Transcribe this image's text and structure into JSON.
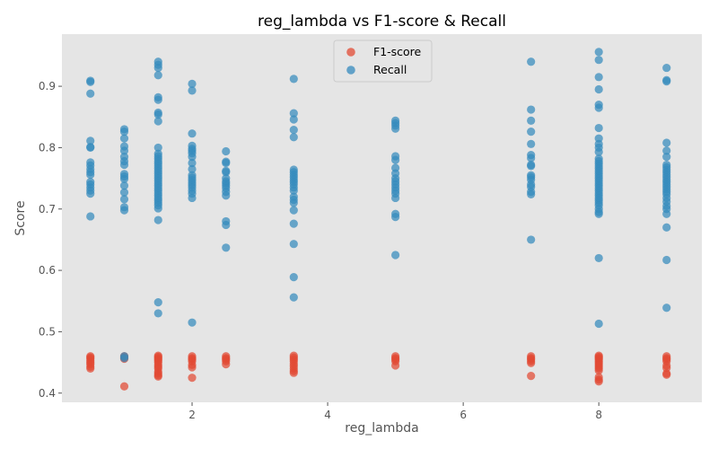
{
  "chart_data": {
    "type": "scatter",
    "title": "reg_lambda vs F1-score & Recall",
    "xlabel": "reg_lambda",
    "ylabel": "Score",
    "xlim": [
      0.08,
      9.52
    ],
    "ylim": [
      0.385,
      0.985
    ],
    "xticks": [
      2,
      4,
      6,
      8
    ],
    "yticks": [
      0.4,
      0.5,
      0.6,
      0.7,
      0.8,
      0.9
    ],
    "xtick_labels": [
      "2",
      "4",
      "6",
      "8"
    ],
    "ytick_labels": [
      "0.4",
      "0.5",
      "0.6",
      "0.7",
      "0.8",
      "0.9"
    ],
    "grid": false,
    "background": "#e5e5e5",
    "legend_position": "top-center",
    "legend": [
      {
        "label": "F1-score",
        "color": "#e24a33"
      },
      {
        "label": "Recall",
        "color": "#348abd"
      }
    ],
    "series": [
      {
        "name": "F1-score",
        "color": "#e24a33",
        "points": [
          [
            0.5,
            0.46
          ],
          [
            0.5,
            0.458
          ],
          [
            0.5,
            0.456
          ],
          [
            0.5,
            0.453
          ],
          [
            0.5,
            0.45
          ],
          [
            0.5,
            0.447
          ],
          [
            0.5,
            0.443
          ],
          [
            0.5,
            0.44
          ],
          [
            1.0,
            0.46
          ],
          [
            1.0,
            0.458
          ],
          [
            1.0,
            0.456
          ],
          [
            1.0,
            0.411
          ],
          [
            1.5,
            0.461
          ],
          [
            1.5,
            0.459
          ],
          [
            1.5,
            0.457
          ],
          [
            1.5,
            0.455
          ],
          [
            1.5,
            0.453
          ],
          [
            1.5,
            0.45
          ],
          [
            1.5,
            0.446
          ],
          [
            1.5,
            0.443
          ],
          [
            1.5,
            0.44
          ],
          [
            1.5,
            0.435
          ],
          [
            1.5,
            0.432
          ],
          [
            1.5,
            0.429
          ],
          [
            1.5,
            0.427
          ],
          [
            2.0,
            0.46
          ],
          [
            2.0,
            0.457
          ],
          [
            2.0,
            0.455
          ],
          [
            2.0,
            0.452
          ],
          [
            2.0,
            0.446
          ],
          [
            2.0,
            0.442
          ],
          [
            2.0,
            0.425
          ],
          [
            2.5,
            0.46
          ],
          [
            2.5,
            0.457
          ],
          [
            2.5,
            0.455
          ],
          [
            2.5,
            0.452
          ],
          [
            2.5,
            0.447
          ],
          [
            3.5,
            0.461
          ],
          [
            3.5,
            0.458
          ],
          [
            3.5,
            0.455
          ],
          [
            3.5,
            0.452
          ],
          [
            3.5,
            0.448
          ],
          [
            3.5,
            0.444
          ],
          [
            3.5,
            0.44
          ],
          [
            3.5,
            0.436
          ],
          [
            3.5,
            0.433
          ],
          [
            5.0,
            0.46
          ],
          [
            5.0,
            0.457
          ],
          [
            5.0,
            0.455
          ],
          [
            5.0,
            0.452
          ],
          [
            5.0,
            0.445
          ],
          [
            7.0,
            0.46
          ],
          [
            7.0,
            0.457
          ],
          [
            7.0,
            0.455
          ],
          [
            7.0,
            0.452
          ],
          [
            7.0,
            0.449
          ],
          [
            7.0,
            0.428
          ],
          [
            8.0,
            0.461
          ],
          [
            8.0,
            0.459
          ],
          [
            8.0,
            0.457
          ],
          [
            8.0,
            0.455
          ],
          [
            8.0,
            0.452
          ],
          [
            8.0,
            0.449
          ],
          [
            8.0,
            0.446
          ],
          [
            8.0,
            0.443
          ],
          [
            8.0,
            0.44
          ],
          [
            8.0,
            0.437
          ],
          [
            8.0,
            0.426
          ],
          [
            8.0,
            0.422
          ],
          [
            8.0,
            0.419
          ],
          [
            9.0,
            0.46
          ],
          [
            9.0,
            0.457
          ],
          [
            9.0,
            0.455
          ],
          [
            9.0,
            0.452
          ],
          [
            9.0,
            0.445
          ],
          [
            9.0,
            0.441
          ],
          [
            9.0,
            0.432
          ],
          [
            9.0,
            0.43
          ]
        ]
      },
      {
        "name": "Recall",
        "color": "#348abd",
        "points": [
          [
            0.5,
            0.909
          ],
          [
            0.5,
            0.907
          ],
          [
            0.5,
            0.888
          ],
          [
            0.5,
            0.811
          ],
          [
            0.5,
            0.801
          ],
          [
            0.5,
            0.8
          ],
          [
            0.5,
            0.776
          ],
          [
            0.5,
            0.771
          ],
          [
            0.5,
            0.765
          ],
          [
            0.5,
            0.76
          ],
          [
            0.5,
            0.756
          ],
          [
            0.5,
            0.744
          ],
          [
            0.5,
            0.74
          ],
          [
            0.5,
            0.735
          ],
          [
            0.5,
            0.73
          ],
          [
            0.5,
            0.725
          ],
          [
            0.5,
            0.688
          ],
          [
            1.0,
            0.83
          ],
          [
            1.0,
            0.826
          ],
          [
            1.0,
            0.815
          ],
          [
            1.0,
            0.802
          ],
          [
            1.0,
            0.795
          ],
          [
            1.0,
            0.785
          ],
          [
            1.0,
            0.778
          ],
          [
            1.0,
            0.772
          ],
          [
            1.0,
            0.757
          ],
          [
            1.0,
            0.753
          ],
          [
            1.0,
            0.749
          ],
          [
            1.0,
            0.738
          ],
          [
            1.0,
            0.727
          ],
          [
            1.0,
            0.716
          ],
          [
            1.0,
            0.703
          ],
          [
            1.0,
            0.698
          ],
          [
            1.0,
            0.46
          ],
          [
            1.0,
            0.457
          ],
          [
            1.5,
            0.94
          ],
          [
            1.5,
            0.935
          ],
          [
            1.5,
            0.93
          ],
          [
            1.5,
            0.918
          ],
          [
            1.5,
            0.882
          ],
          [
            1.5,
            0.878
          ],
          [
            1.5,
            0.857
          ],
          [
            1.5,
            0.854
          ],
          [
            1.5,
            0.843
          ],
          [
            1.5,
            0.8
          ],
          [
            1.5,
            0.79
          ],
          [
            1.5,
            0.786
          ],
          [
            1.5,
            0.782
          ],
          [
            1.5,
            0.778
          ],
          [
            1.5,
            0.774
          ],
          [
            1.5,
            0.77
          ],
          [
            1.5,
            0.766
          ],
          [
            1.5,
            0.762
          ],
          [
            1.5,
            0.758
          ],
          [
            1.5,
            0.754
          ],
          [
            1.5,
            0.75
          ],
          [
            1.5,
            0.746
          ],
          [
            1.5,
            0.742
          ],
          [
            1.5,
            0.738
          ],
          [
            1.5,
            0.734
          ],
          [
            1.5,
            0.73
          ],
          [
            1.5,
            0.726
          ],
          [
            1.5,
            0.722
          ],
          [
            1.5,
            0.718
          ],
          [
            1.5,
            0.714
          ],
          [
            1.5,
            0.71
          ],
          [
            1.5,
            0.706
          ],
          [
            1.5,
            0.701
          ],
          [
            1.5,
            0.682
          ],
          [
            1.5,
            0.548
          ],
          [
            1.5,
            0.53
          ],
          [
            2.0,
            0.904
          ],
          [
            2.0,
            0.893
          ],
          [
            2.0,
            0.823
          ],
          [
            2.0,
            0.803
          ],
          [
            2.0,
            0.798
          ],
          [
            2.0,
            0.795
          ],
          [
            2.0,
            0.791
          ],
          [
            2.0,
            0.785
          ],
          [
            2.0,
            0.775
          ],
          [
            2.0,
            0.765
          ],
          [
            2.0,
            0.755
          ],
          [
            2.0,
            0.751
          ],
          [
            2.0,
            0.747
          ],
          [
            2.0,
            0.743
          ],
          [
            2.0,
            0.739
          ],
          [
            2.0,
            0.735
          ],
          [
            2.0,
            0.73
          ],
          [
            2.0,
            0.725
          ],
          [
            2.0,
            0.718
          ],
          [
            2.0,
            0.515
          ],
          [
            2.5,
            0.794
          ],
          [
            2.5,
            0.777
          ],
          [
            2.5,
            0.775
          ],
          [
            2.5,
            0.762
          ],
          [
            2.5,
            0.76
          ],
          [
            2.5,
            0.75
          ],
          [
            2.5,
            0.745
          ],
          [
            2.5,
            0.742
          ],
          [
            2.5,
            0.738
          ],
          [
            2.5,
            0.734
          ],
          [
            2.5,
            0.728
          ],
          [
            2.5,
            0.722
          ],
          [
            2.5,
            0.68
          ],
          [
            2.5,
            0.674
          ],
          [
            2.5,
            0.637
          ],
          [
            3.5,
            0.912
          ],
          [
            3.5,
            0.856
          ],
          [
            3.5,
            0.846
          ],
          [
            3.5,
            0.829
          ],
          [
            3.5,
            0.817
          ],
          [
            3.5,
            0.764
          ],
          [
            3.5,
            0.76
          ],
          [
            3.5,
            0.756
          ],
          [
            3.5,
            0.752
          ],
          [
            3.5,
            0.748
          ],
          [
            3.5,
            0.744
          ],
          [
            3.5,
            0.74
          ],
          [
            3.5,
            0.735
          ],
          [
            3.5,
            0.73
          ],
          [
            3.5,
            0.72
          ],
          [
            3.5,
            0.715
          ],
          [
            3.5,
            0.71
          ],
          [
            3.5,
            0.698
          ],
          [
            3.5,
            0.676
          ],
          [
            3.5,
            0.643
          ],
          [
            3.5,
            0.589
          ],
          [
            3.5,
            0.556
          ],
          [
            5.0,
            0.844
          ],
          [
            5.0,
            0.84
          ],
          [
            5.0,
            0.836
          ],
          [
            5.0,
            0.831
          ],
          [
            5.0,
            0.786
          ],
          [
            5.0,
            0.78
          ],
          [
            5.0,
            0.767
          ],
          [
            5.0,
            0.758
          ],
          [
            5.0,
            0.75
          ],
          [
            5.0,
            0.745
          ],
          [
            5.0,
            0.74
          ],
          [
            5.0,
            0.735
          ],
          [
            5.0,
            0.73
          ],
          [
            5.0,
            0.725
          ],
          [
            5.0,
            0.718
          ],
          [
            5.0,
            0.692
          ],
          [
            5.0,
            0.687
          ],
          [
            5.0,
            0.625
          ],
          [
            7.0,
            0.94
          ],
          [
            7.0,
            0.862
          ],
          [
            7.0,
            0.844
          ],
          [
            7.0,
            0.826
          ],
          [
            7.0,
            0.806
          ],
          [
            7.0,
            0.788
          ],
          [
            7.0,
            0.783
          ],
          [
            7.0,
            0.772
          ],
          [
            7.0,
            0.77
          ],
          [
            7.0,
            0.755
          ],
          [
            7.0,
            0.752
          ],
          [
            7.0,
            0.748
          ],
          [
            7.0,
            0.74
          ],
          [
            7.0,
            0.736
          ],
          [
            7.0,
            0.728
          ],
          [
            7.0,
            0.724
          ],
          [
            7.0,
            0.65
          ],
          [
            8.0,
            0.956
          ],
          [
            8.0,
            0.943
          ],
          [
            8.0,
            0.915
          ],
          [
            8.0,
            0.895
          ],
          [
            8.0,
            0.87
          ],
          [
            8.0,
            0.865
          ],
          [
            8.0,
            0.832
          ],
          [
            8.0,
            0.815
          ],
          [
            8.0,
            0.806
          ],
          [
            8.0,
            0.8
          ],
          [
            8.0,
            0.793
          ],
          [
            8.0,
            0.782
          ],
          [
            8.0,
            0.778
          ],
          [
            8.0,
            0.774
          ],
          [
            8.0,
            0.77
          ],
          [
            8.0,
            0.766
          ],
          [
            8.0,
            0.762
          ],
          [
            8.0,
            0.758
          ],
          [
            8.0,
            0.754
          ],
          [
            8.0,
            0.75
          ],
          [
            8.0,
            0.746
          ],
          [
            8.0,
            0.742
          ],
          [
            8.0,
            0.738
          ],
          [
            8.0,
            0.734
          ],
          [
            8.0,
            0.73
          ],
          [
            8.0,
            0.726
          ],
          [
            8.0,
            0.722
          ],
          [
            8.0,
            0.718
          ],
          [
            8.0,
            0.714
          ],
          [
            8.0,
            0.71
          ],
          [
            8.0,
            0.706
          ],
          [
            8.0,
            0.7
          ],
          [
            8.0,
            0.695
          ],
          [
            8.0,
            0.692
          ],
          [
            8.0,
            0.62
          ],
          [
            8.0,
            0.513
          ],
          [
            9.0,
            0.93
          ],
          [
            9.0,
            0.91
          ],
          [
            9.0,
            0.908
          ],
          [
            9.0,
            0.808
          ],
          [
            9.0,
            0.795
          ],
          [
            9.0,
            0.785
          ],
          [
            9.0,
            0.772
          ],
          [
            9.0,
            0.768
          ],
          [
            9.0,
            0.764
          ],
          [
            9.0,
            0.76
          ],
          [
            9.0,
            0.756
          ],
          [
            9.0,
            0.752
          ],
          [
            9.0,
            0.748
          ],
          [
            9.0,
            0.744
          ],
          [
            9.0,
            0.74
          ],
          [
            9.0,
            0.736
          ],
          [
            9.0,
            0.732
          ],
          [
            9.0,
            0.728
          ],
          [
            9.0,
            0.724
          ],
          [
            9.0,
            0.718
          ],
          [
            9.0,
            0.712
          ],
          [
            9.0,
            0.705
          ],
          [
            9.0,
            0.7
          ],
          [
            9.0,
            0.692
          ],
          [
            9.0,
            0.67
          ],
          [
            9.0,
            0.617
          ],
          [
            9.0,
            0.539
          ]
        ]
      }
    ]
  }
}
